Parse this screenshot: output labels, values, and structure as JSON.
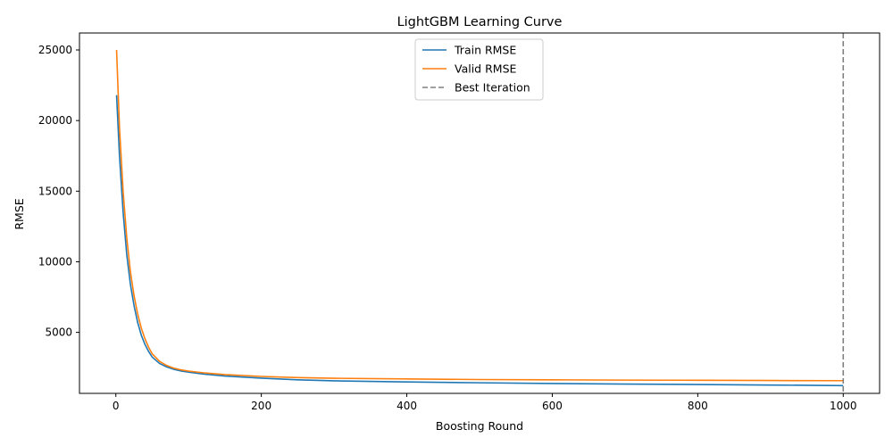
{
  "chart_data": {
    "type": "line",
    "title": "LightGBM Learning Curve",
    "xlabel": "Boosting Round",
    "ylabel": "RMSE",
    "xlim": [
      -50,
      1050
    ],
    "ylim": [
      680,
      26200
    ],
    "xticks": [
      0,
      200,
      400,
      600,
      800,
      1000
    ],
    "yticks": [
      5000,
      10000,
      15000,
      20000,
      25000
    ],
    "grid": false,
    "legend_position": "upper-center",
    "best_iteration": 1000,
    "series": [
      {
        "name": "Train RMSE",
        "color": "#1f77b4",
        "style": "solid",
        "x": [
          1,
          5,
          10,
          15,
          20,
          25,
          30,
          35,
          40,
          45,
          50,
          60,
          70,
          80,
          90,
          100,
          120,
          150,
          200,
          250,
          300,
          400,
          500,
          600,
          700,
          800,
          900,
          1000
        ],
        "y": [
          21800,
          17500,
          13500,
          10500,
          8400,
          6900,
          5700,
          4800,
          4150,
          3650,
          3250,
          2800,
          2550,
          2380,
          2260,
          2180,
          2050,
          1910,
          1760,
          1640,
          1570,
          1490,
          1430,
          1380,
          1340,
          1310,
          1270,
          1230
        ]
      },
      {
        "name": "Valid RMSE",
        "color": "#ff7f0e",
        "style": "solid",
        "x": [
          1,
          5,
          10,
          15,
          20,
          25,
          30,
          35,
          40,
          45,
          50,
          60,
          70,
          80,
          90,
          100,
          120,
          150,
          200,
          250,
          300,
          400,
          500,
          600,
          700,
          800,
          900,
          1000
        ],
        "y": [
          25000,
          19500,
          15000,
          11700,
          9300,
          7600,
          6300,
          5300,
          4550,
          3950,
          3480,
          2950,
          2650,
          2460,
          2340,
          2260,
          2140,
          2010,
          1880,
          1800,
          1750,
          1700,
          1660,
          1640,
          1620,
          1610,
          1590,
          1580
        ]
      }
    ],
    "legend": [
      {
        "label": "Train RMSE",
        "color": "#1f77b4",
        "style": "solid"
      },
      {
        "label": "Valid RMSE",
        "color": "#ff7f0e",
        "style": "solid"
      },
      {
        "label": "Best Iteration",
        "color": "#808080",
        "style": "dashed"
      }
    ]
  }
}
